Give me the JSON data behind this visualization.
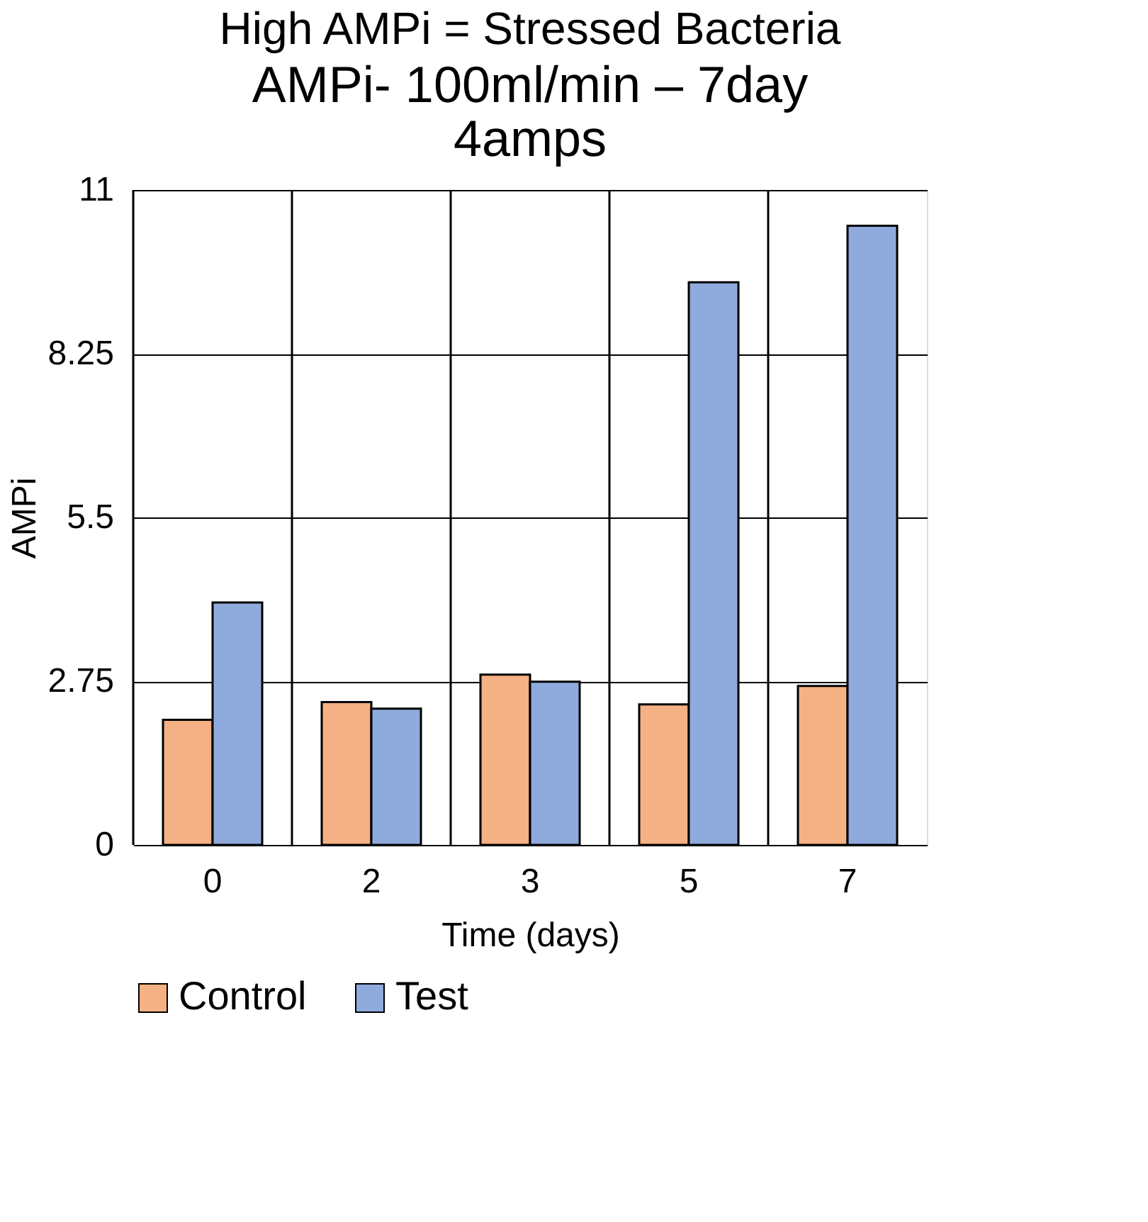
{
  "chart_data": {
    "type": "bar",
    "title": "High AMPi = Stressed Bacteria",
    "subtitle": [
      "AMPi- 100ml/min – 7day",
      "4amps"
    ],
    "xlabel": "Time (days)",
    "ylabel": "AMPi",
    "categories": [
      "0",
      "2",
      "3",
      "5",
      "7"
    ],
    "series": [
      {
        "name": "Control",
        "color": "#f4b183",
        "values": [
          2.1,
          2.4,
          2.86,
          2.36,
          2.67
        ]
      },
      {
        "name": "Test",
        "color": "#8faadc",
        "values": [
          4.07,
          2.29,
          2.74,
          9.45,
          10.4
        ]
      }
    ],
    "ylim": [
      0,
      11
    ],
    "yticks": [
      0,
      2.75,
      5.5,
      8.25,
      11
    ],
    "grid": true,
    "legend": "bottom"
  }
}
